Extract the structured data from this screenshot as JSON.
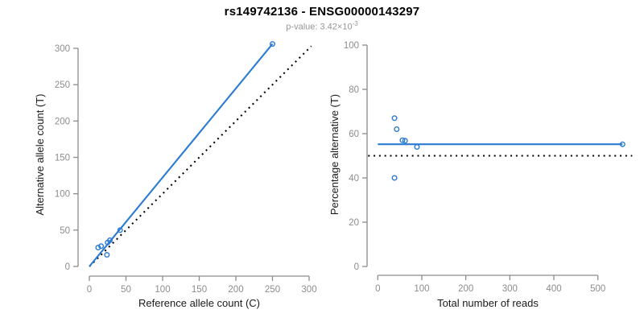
{
  "header": {
    "title": "rs149742136 - ENSG00000143297",
    "pvalue_label": "p-value: 3.42×10",
    "pvalue_exponent": "-3"
  },
  "colors": {
    "accent_blue": "#2b7bd4",
    "axis_gray": "#8c8c8c",
    "line_black": "#000000"
  },
  "chart_data": [
    {
      "type": "scatter",
      "panel": "left",
      "xlabel": "Reference allele count (C)",
      "ylabel": "Alternative allele count (T)",
      "xticks": [
        0,
        50,
        100,
        150,
        200,
        250,
        300
      ],
      "yticks": [
        0,
        50,
        100,
        150,
        200,
        250,
        300
      ],
      "xlim": [
        -12,
        318
      ],
      "ylim": [
        -12,
        318
      ],
      "grid": false,
      "legend": false,
      "points": [
        {
          "x": 12,
          "y": 26
        },
        {
          "x": 16,
          "y": 28
        },
        {
          "x": 24,
          "y": 16
        },
        {
          "x": 25,
          "y": 33
        },
        {
          "x": 28,
          "y": 36
        },
        {
          "x": 42,
          "y": 50
        },
        {
          "x": 250,
          "y": 306
        }
      ],
      "lines": [
        {
          "name": "identity-line",
          "style": "dotted",
          "color": "black",
          "x1": 0,
          "y1": 0,
          "x2": 303,
          "y2": 303
        },
        {
          "name": "fit-line",
          "style": "solid",
          "color": "blue",
          "x1": 0,
          "y1": 0,
          "x2": 250,
          "y2": 306
        }
      ]
    },
    {
      "type": "scatter",
      "panel": "right",
      "xlabel": "Total number of reads",
      "ylabel": "Percentage alternative (T)",
      "xticks": [
        0,
        100,
        200,
        300,
        400,
        500
      ],
      "yticks": [
        0,
        20,
        40,
        60,
        80,
        100
      ],
      "xlim": [
        -22,
        578
      ],
      "ylim": [
        -4,
        104
      ],
      "grid": false,
      "legend": false,
      "points": [
        {
          "x": 38,
          "y": 67
        },
        {
          "x": 43,
          "y": 62
        },
        {
          "x": 38,
          "y": 40
        },
        {
          "x": 56,
          "y": 57
        },
        {
          "x": 62,
          "y": 56.8
        },
        {
          "x": 89,
          "y": 54
        },
        {
          "x": 556,
          "y": 55.2
        }
      ],
      "lines": [
        {
          "name": "null-line",
          "style": "dotted",
          "color": "black",
          "x1": -22,
          "y1": 50,
          "x2": 578,
          "y2": 50
        },
        {
          "name": "fit-line",
          "style": "solid",
          "color": "blue",
          "x1": 0,
          "y1": 55.2,
          "x2": 556,
          "y2": 55.2
        }
      ]
    }
  ]
}
